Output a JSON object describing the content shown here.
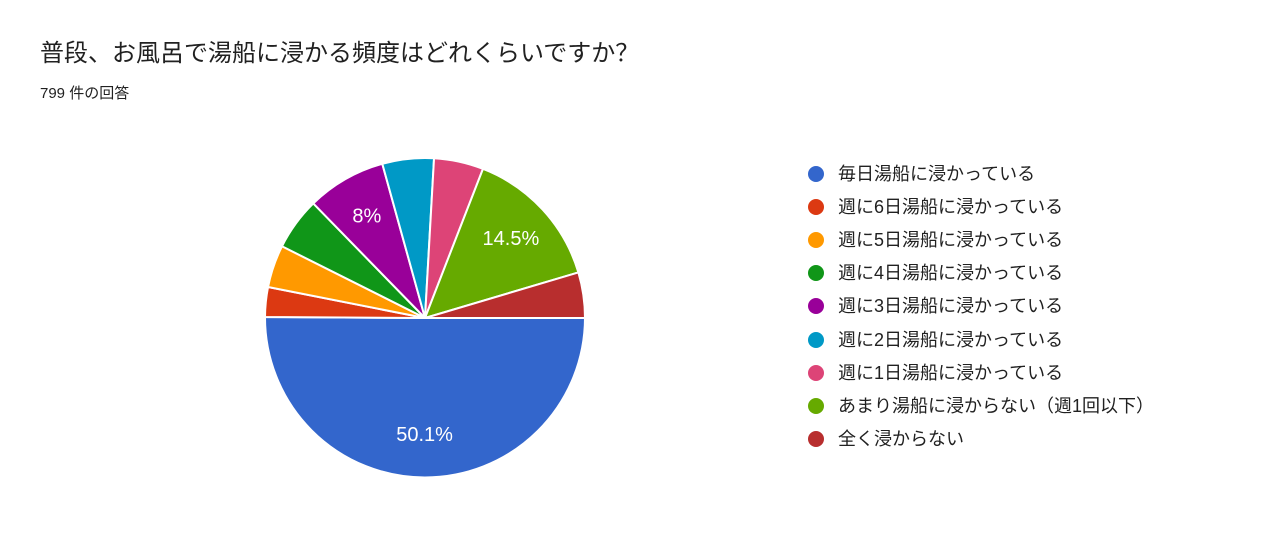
{
  "chart_data": {
    "type": "pie",
    "title": "普段、お風呂で湯船に浸かる頻度はどれくらいですか？",
    "subtitle": "799 件の回答",
    "responses_total": 799,
    "background": "#ffffff",
    "legend_position": "right",
    "start_angle_deg": 0,
    "direction": "clockwise",
    "slices": [
      {
        "label": "毎日湯船に浸かっている",
        "percent": 50.1,
        "display_label": "50.1%",
        "color": "#3366CC"
      },
      {
        "label": "週に6日湯船に浸かっている",
        "percent": 3.0,
        "display_label": "",
        "color": "#DC3912"
      },
      {
        "label": "週に5日湯船に浸かっている",
        "percent": 4.3,
        "display_label": "",
        "color": "#FF9900"
      },
      {
        "label": "週に4日湯船に浸かっている",
        "percent": 5.3,
        "display_label": "",
        "color": "#109618"
      },
      {
        "label": "週に3日湯船に浸かっている",
        "percent": 8.0,
        "display_label": "8%",
        "color": "#990099"
      },
      {
        "label": "週に2日湯船に浸かっている",
        "percent": 5.2,
        "display_label": "",
        "color": "#0099C6"
      },
      {
        "label": "週に1日湯船に浸かっている",
        "percent": 5.0,
        "display_label": "",
        "color": "#DD4477"
      },
      {
        "label": "あまり湯船に浸からない（週1回以下）",
        "percent": 14.5,
        "display_label": "14.5%",
        "color": "#66AA00"
      },
      {
        "label": "全く浸からない",
        "percent": 4.6,
        "display_label": "",
        "color": "#B82E2E"
      }
    ]
  }
}
